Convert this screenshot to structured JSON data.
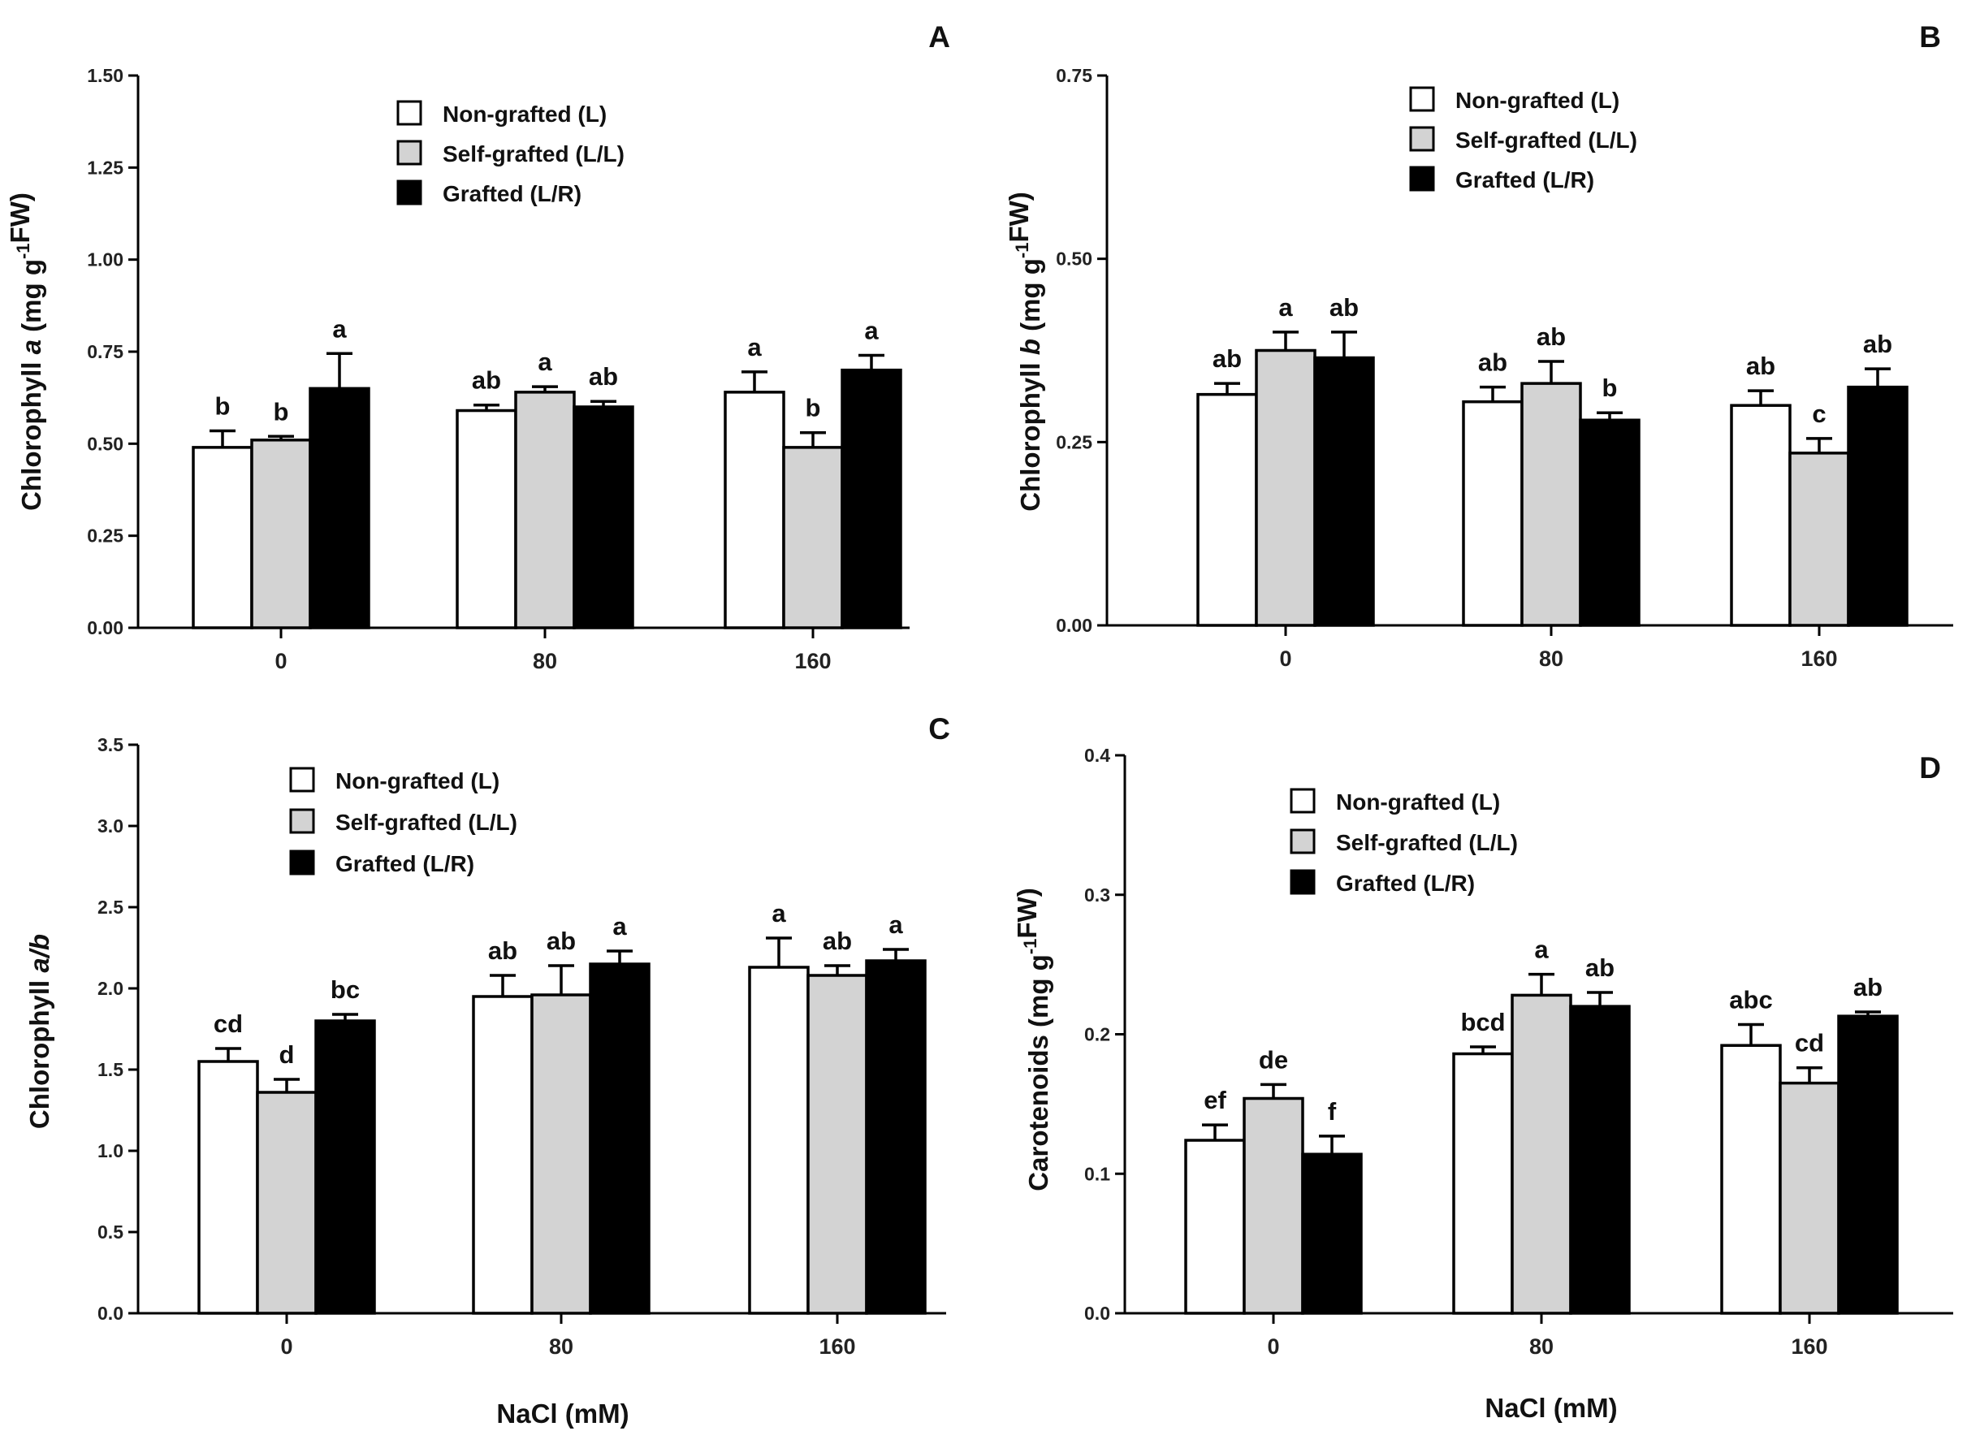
{
  "colors": {
    "series": [
      "#ffffff",
      "#d3d3d3",
      "#000000"
    ],
    "stroke": "#000000"
  },
  "legend": [
    "Non-grafted (L)",
    "Self-grafted (L/L)",
    "Grafted (L/R)"
  ],
  "xlabel_bottom_left": "NaCl (mM)",
  "xlabel_bottom_right": "NaCl (mM)",
  "chart_data": [
    {
      "id": "A",
      "type": "bar",
      "panel_label": "A",
      "ylabel_parts": [
        "Chlorophyll ",
        "a",
        " (mg g",
        "-1",
        "FW)"
      ],
      "ylim": [
        0,
        1.5
      ],
      "yticks": [
        "0.00",
        "0.25",
        "0.50",
        "0.75",
        "1.00",
        "1.25",
        "1.50"
      ],
      "categories": [
        "0",
        "80",
        "160"
      ],
      "series": [
        {
          "name": "Non-grafted (L)",
          "values": [
            0.49,
            0.59,
            0.64
          ],
          "errors": [
            0.045,
            0.015,
            0.055
          ],
          "letters": [
            "b",
            "ab",
            "a"
          ]
        },
        {
          "name": "Self-grafted (L/L)",
          "values": [
            0.51,
            0.64,
            0.49
          ],
          "errors": [
            0.01,
            0.015,
            0.04
          ],
          "letters": [
            "b",
            "a",
            "b"
          ]
        },
        {
          "name": "Grafted (L/R)",
          "values": [
            0.65,
            0.6,
            0.7
          ],
          "errors": [
            0.095,
            0.015,
            0.04
          ],
          "letters": [
            "a",
            "ab",
            "a"
          ]
        }
      ]
    },
    {
      "id": "B",
      "type": "bar",
      "panel_label": "B",
      "ylabel_parts": [
        "Chlorophyll ",
        "b",
        " (mg g",
        "-1",
        "FW)"
      ],
      "ylim": [
        0,
        0.75
      ],
      "yticks": [
        "0.00",
        "0.25",
        "0.50",
        "0.75"
      ],
      "categories": [
        "0",
        "80",
        "160"
      ],
      "series": [
        {
          "name": "Non-grafted (L)",
          "values": [
            0.315,
            0.305,
            0.3
          ],
          "errors": [
            0.015,
            0.02,
            0.02
          ],
          "letters": [
            "ab",
            "ab",
            "ab"
          ]
        },
        {
          "name": "Self-grafted (L/L)",
          "values": [
            0.375,
            0.33,
            0.235
          ],
          "errors": [
            0.025,
            0.03,
            0.02
          ],
          "letters": [
            "a",
            "ab",
            "c"
          ]
        },
        {
          "name": "Grafted (L/R)",
          "values": [
            0.365,
            0.28,
            0.325
          ],
          "errors": [
            0.035,
            0.01,
            0.025
          ],
          "letters": [
            "ab",
            "b",
            "ab"
          ]
        }
      ]
    },
    {
      "id": "C",
      "type": "bar",
      "panel_label": "C",
      "ylabel_parts": [
        "Chlorophyll ",
        "a/b"
      ],
      "ylim": [
        0,
        3.5
      ],
      "yticks": [
        "0.0",
        "0.5",
        "1.0",
        "1.5",
        "2.0",
        "2.5",
        "3.0",
        "3.5"
      ],
      "categories": [
        "0",
        "80",
        "160"
      ],
      "series": [
        {
          "name": "Non-grafted (L)",
          "values": [
            1.55,
            1.95,
            2.13
          ],
          "errors": [
            0.08,
            0.13,
            0.18
          ],
          "letters": [
            "cd",
            "ab",
            "a"
          ]
        },
        {
          "name": "Self-grafted (L/L)",
          "values": [
            1.36,
            1.96,
            2.08
          ],
          "errors": [
            0.08,
            0.18,
            0.06
          ],
          "letters": [
            "d",
            "ab",
            "ab"
          ]
        },
        {
          "name": "Grafted (L/R)",
          "values": [
            1.8,
            2.15,
            2.17
          ],
          "errors": [
            0.04,
            0.08,
            0.07
          ],
          "letters": [
            "bc",
            "a",
            "a"
          ]
        }
      ]
    },
    {
      "id": "D",
      "type": "bar",
      "panel_label": "D",
      "ylabel_parts": [
        "Carotenoids (mg g",
        "-1",
        "FW)"
      ],
      "ylim": [
        0,
        0.4
      ],
      "yticks": [
        "0.0",
        "0.1",
        "0.2",
        "0.3",
        "0.4"
      ],
      "categories": [
        "0",
        "80",
        "160"
      ],
      "series": [
        {
          "name": "Non-grafted (L)",
          "values": [
            0.124,
            0.186,
            0.192
          ],
          "errors": [
            0.011,
            0.005,
            0.015
          ],
          "letters": [
            "ef",
            "bcd",
            "abc"
          ]
        },
        {
          "name": "Self-grafted (L/L)",
          "values": [
            0.154,
            0.228,
            0.165
          ],
          "errors": [
            0.01,
            0.015,
            0.011
          ],
          "letters": [
            "de",
            "a",
            "cd"
          ]
        },
        {
          "name": "Grafted (L/R)",
          "values": [
            0.114,
            0.22,
            0.213
          ],
          "errors": [
            0.013,
            0.01,
            0.003
          ],
          "letters": [
            "f",
            "ab",
            "ab"
          ]
        }
      ]
    }
  ]
}
